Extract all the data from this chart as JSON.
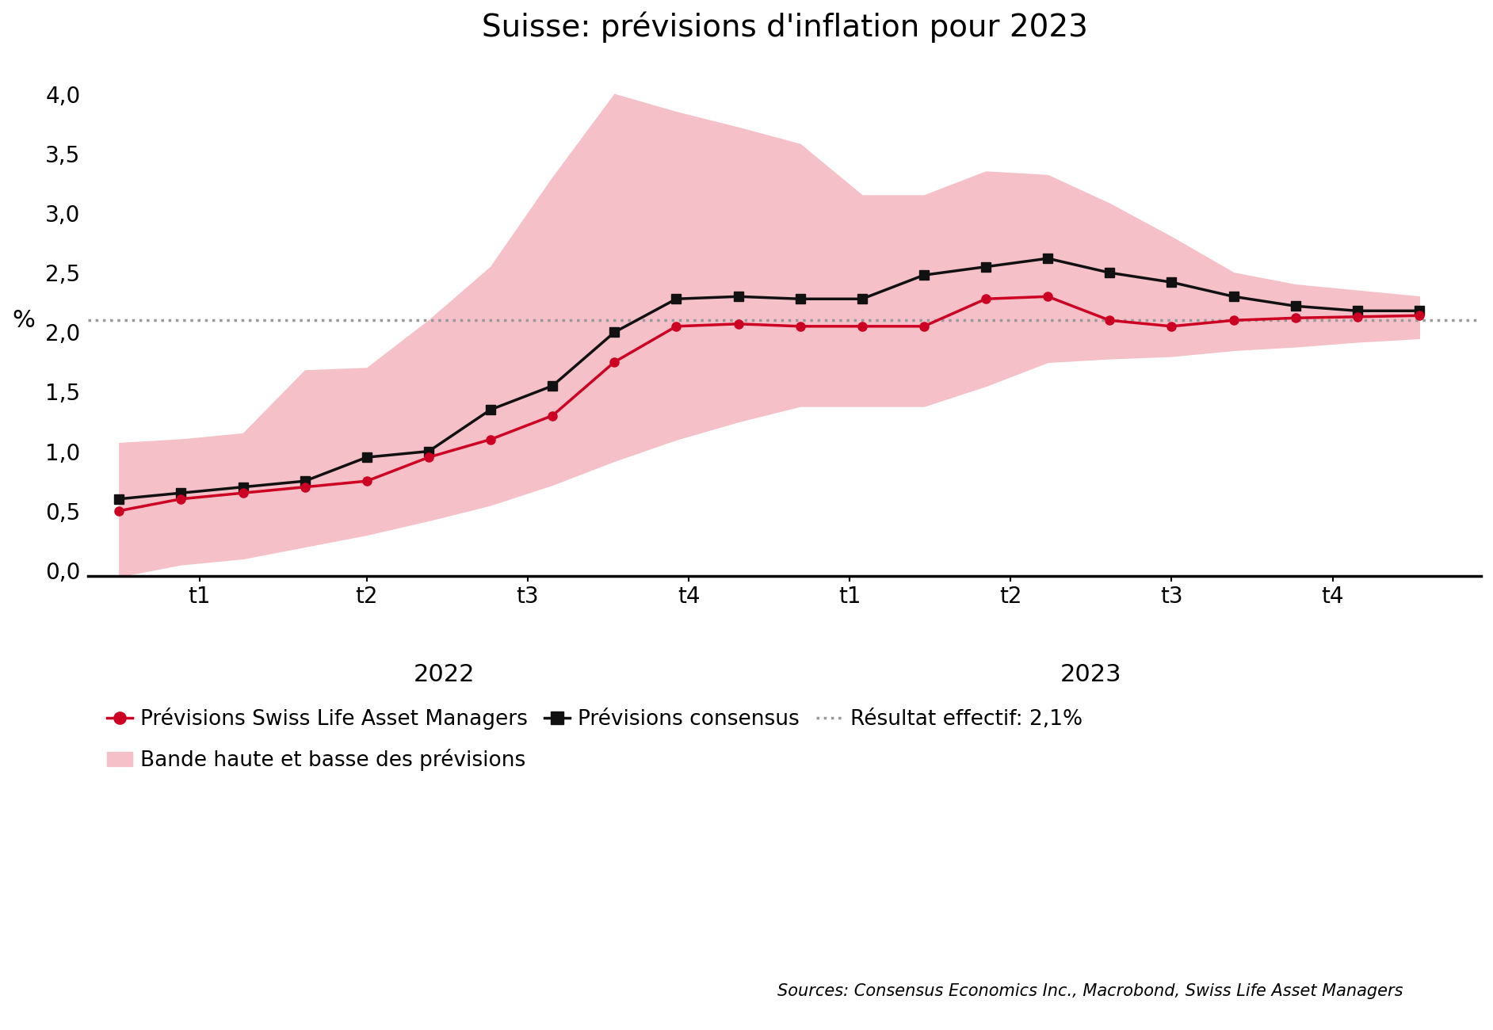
{
  "title": "Suisse: prévisions d'inflation pour 2023",
  "ylabel": "%",
  "result_effectif": 2.1,
  "ylim": [
    -0.05,
    4.25
  ],
  "yticks": [
    0.0,
    0.5,
    1.0,
    1.5,
    2.0,
    2.5,
    3.0,
    3.5,
    4.0
  ],
  "swiss_life": [
    0.5,
    0.6,
    0.65,
    0.7,
    0.75,
    0.95,
    1.1,
    1.3,
    1.75,
    2.05,
    2.07,
    2.05,
    2.05,
    2.05,
    2.28,
    2.3,
    2.1,
    2.05,
    2.1,
    2.12,
    2.13,
    2.14
  ],
  "consensus": [
    0.6,
    0.65,
    0.7,
    0.75,
    0.95,
    1.0,
    1.35,
    1.55,
    2.0,
    2.28,
    2.3,
    2.28,
    2.28,
    2.48,
    2.55,
    2.62,
    2.5,
    2.42,
    2.3,
    2.22,
    2.18,
    2.18
  ],
  "band_upper": [
    1.07,
    1.1,
    1.15,
    1.68,
    1.7,
    2.1,
    2.55,
    3.3,
    4.0,
    3.85,
    3.72,
    3.58,
    3.15,
    3.15,
    3.35,
    3.32,
    3.08,
    2.8,
    2.5,
    2.4,
    2.35,
    2.3
  ],
  "band_lower": [
    -0.05,
    0.05,
    0.1,
    0.2,
    0.3,
    0.42,
    0.55,
    0.72,
    0.92,
    1.1,
    1.25,
    1.38,
    1.38,
    1.38,
    1.55,
    1.75,
    1.78,
    1.8,
    1.85,
    1.88,
    1.92,
    1.95
  ],
  "n_points": 22,
  "colors": {
    "swiss_life": "#cc0022",
    "consensus": "#111111",
    "band": "#f5c0c8",
    "dashed": "#999999",
    "background": "#ffffff"
  },
  "legend": {
    "swiss_life_label": "Prévisions Swiss Life Asset Managers",
    "consensus_label": "Prévisions consensus",
    "result_label": "Résultat effectif: 2,1%",
    "band_label": "Bande haute et basse des prévisions"
  },
  "source_text": "Sources: Consensus Economics Inc., Macrobond, Swiss Life Asset Managers",
  "q_labels": [
    "t1",
    "t2",
    "t3",
    "t4",
    "t1",
    "t2",
    "t3",
    "t4"
  ],
  "year_2022_label": "2022",
  "year_2023_label": "2023"
}
